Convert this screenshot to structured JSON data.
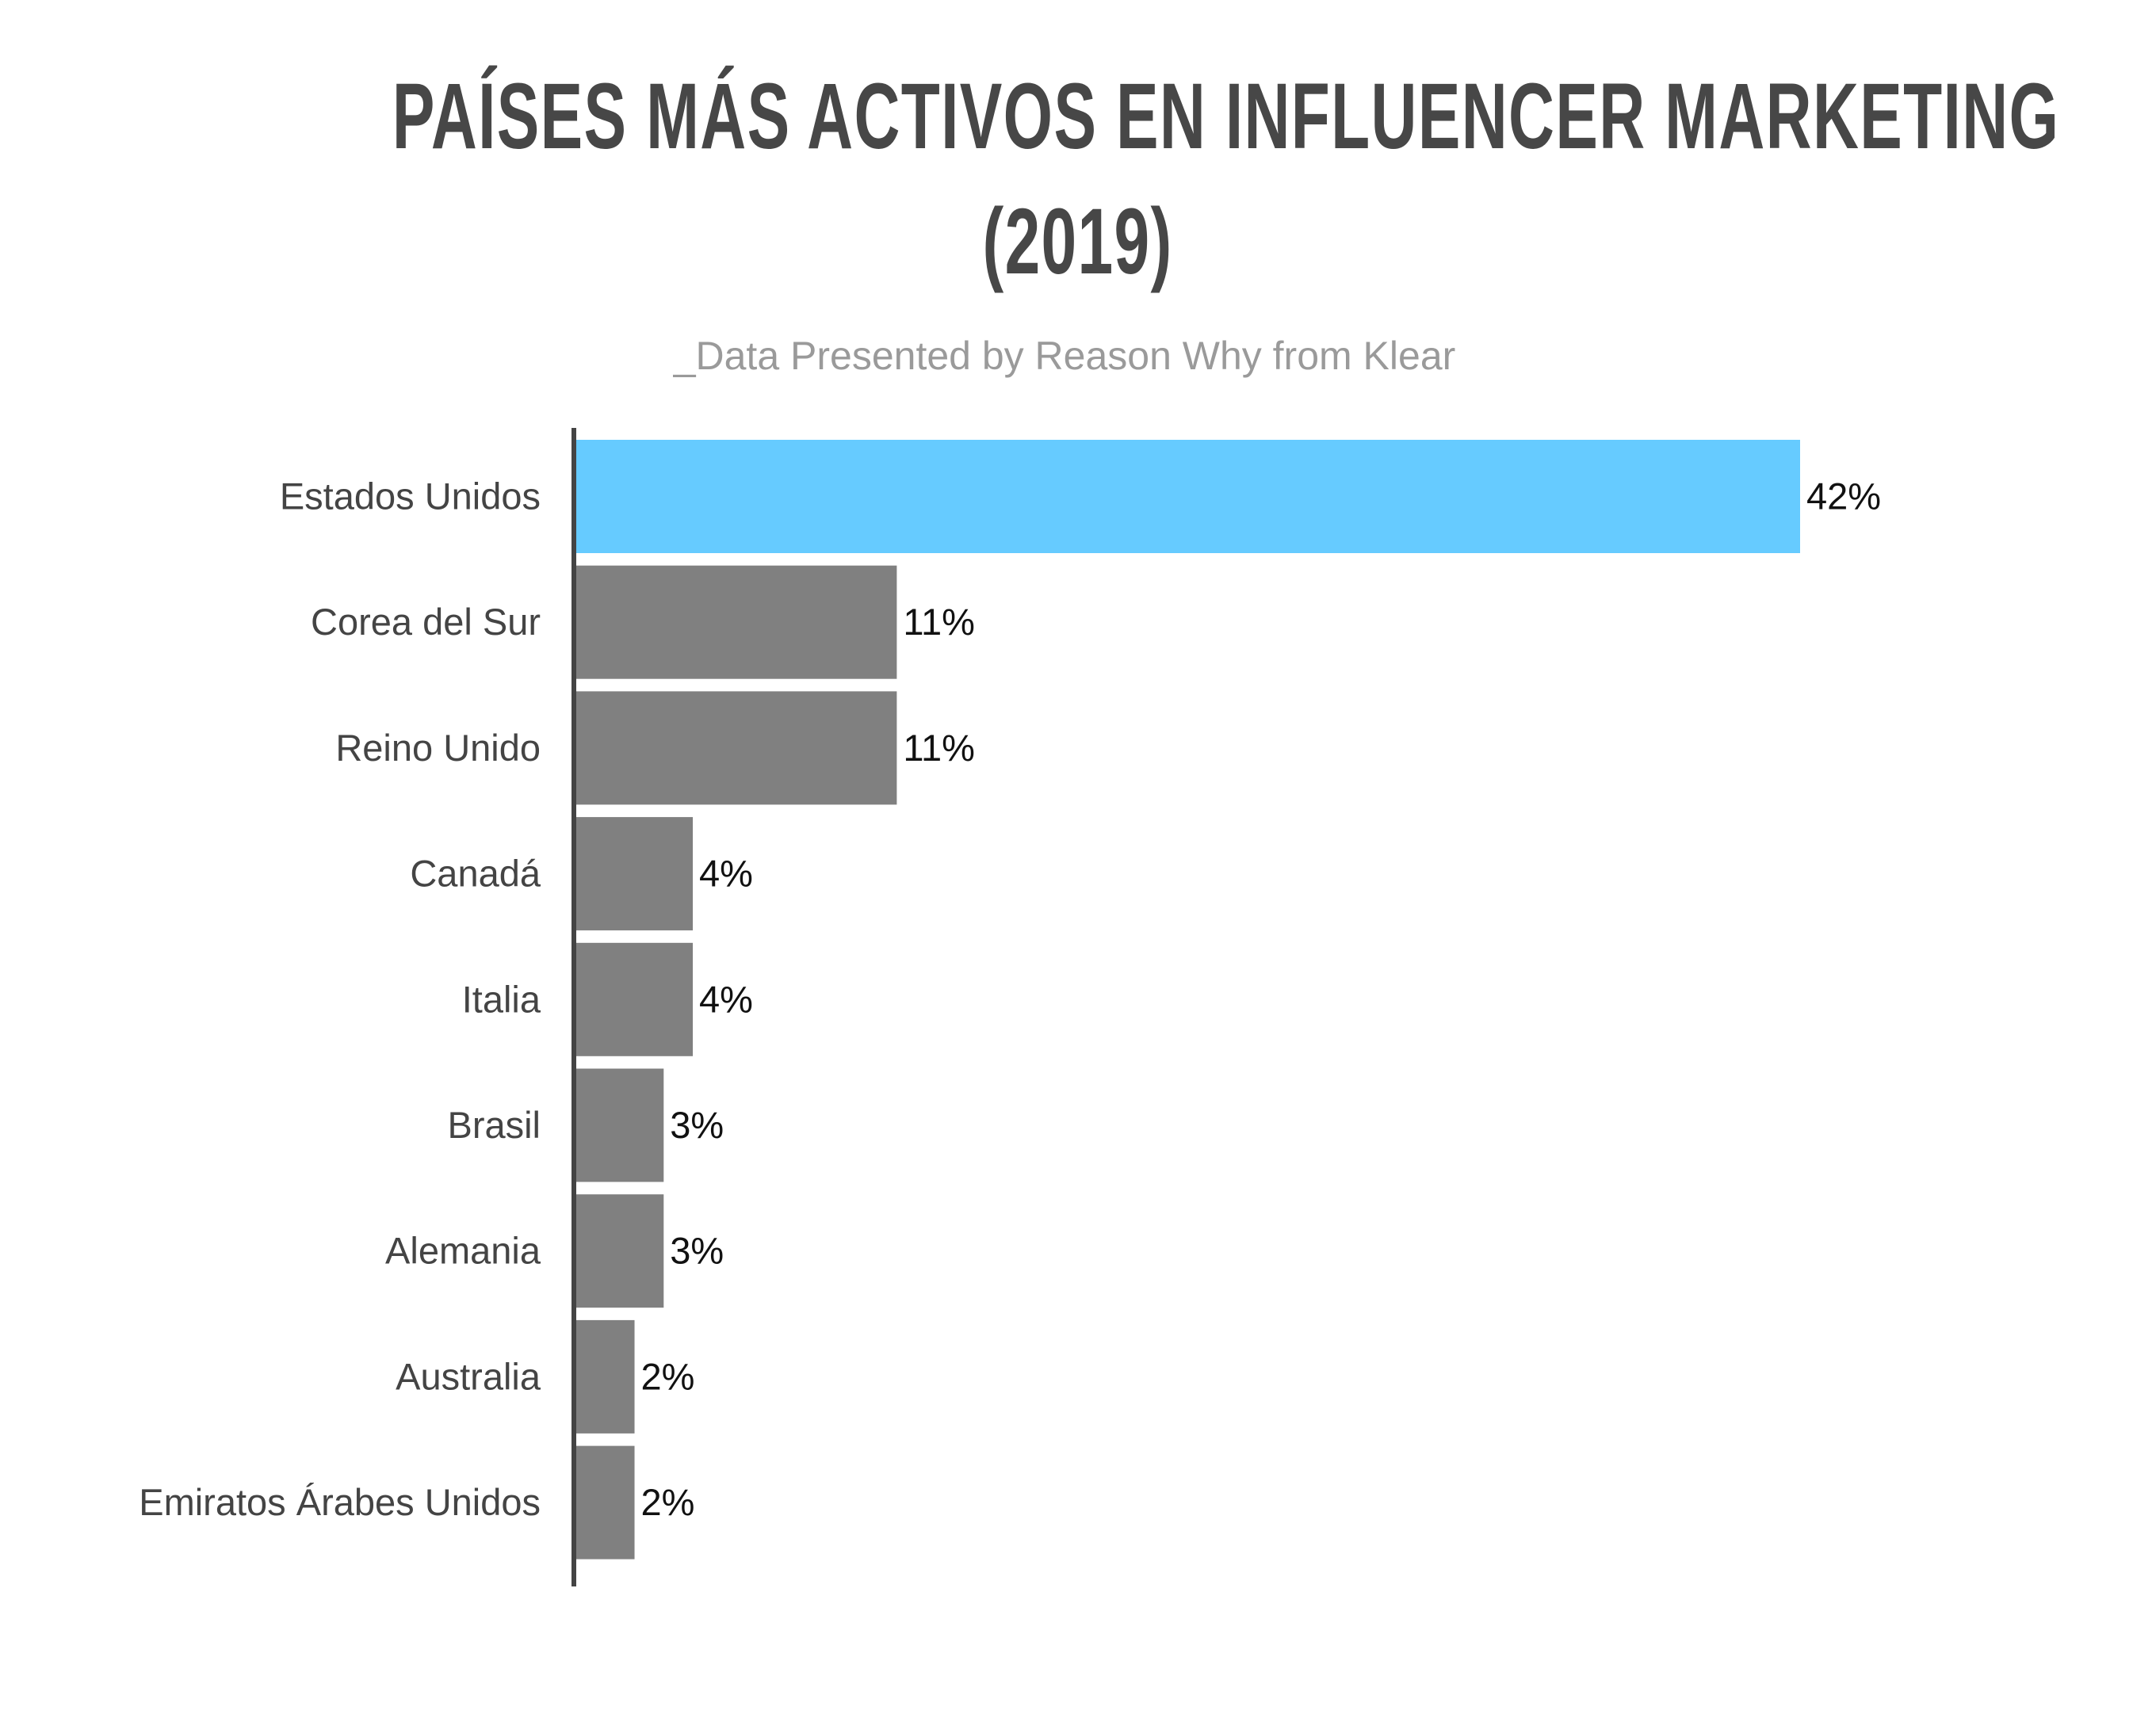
{
  "chart_data": {
    "type": "bar",
    "orientation": "horizontal",
    "title_line1": "PAÍSES MÁS ACTIVOS EN INFLUENCER MARKETING",
    "title_line2": "(2019)",
    "subtitle": "_Data Presented by Reason Why from Klear",
    "categories": [
      "Estados Unidos",
      "Corea del Sur",
      "Reino Unido",
      "Canadá",
      "Italia",
      "Brasil",
      "Alemania",
      "Australia",
      "Emiratos Árabes Unidos"
    ],
    "values": [
      42,
      11,
      11,
      4,
      4,
      3,
      3,
      2,
      2
    ],
    "value_labels": [
      "42%",
      "11%",
      "11%",
      "4%",
      "4%",
      "3%",
      "3%",
      "2%",
      "2%"
    ],
    "xlabel": "",
    "ylabel": "",
    "xlim": [
      0,
      42
    ],
    "grid": false,
    "colors": {
      "highlight": "#66cbff",
      "default": "#808080",
      "axis": "#444444"
    }
  }
}
